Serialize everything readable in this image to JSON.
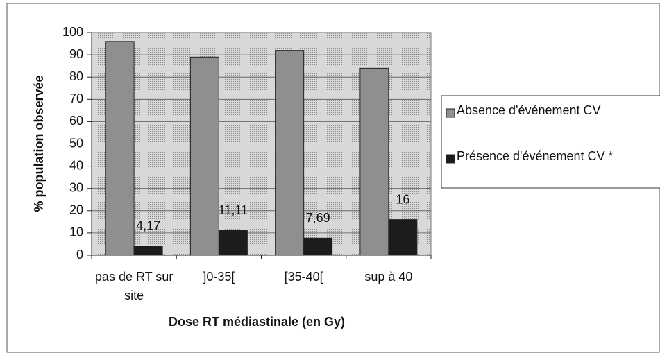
{
  "chart_data": {
    "type": "bar",
    "xlabel": "Dose RT médiastinale (en Gy)",
    "ylabel": "% population observée",
    "categories": [
      "pas de RT sur site",
      "]0-35[",
      "[35-40[",
      "sup à 40"
    ],
    "series": [
      {
        "name": "Absence d'événement CV",
        "color": "#8f8f8f",
        "values": [
          96,
          89,
          92,
          84
        ]
      },
      {
        "name": "Présence d'événement CV *",
        "color": "#1c1c1c",
        "values": [
          4.17,
          11.11,
          7.69,
          16
        ],
        "value_labels": [
          "4,17",
          "11,11",
          "7,69",
          "16"
        ]
      }
    ],
    "ylim": [
      0,
      100
    ],
    "yticks": [
      0,
      10,
      20,
      30,
      40,
      50,
      60,
      70,
      80,
      90,
      100
    ],
    "grid": true,
    "legend": "right"
  }
}
